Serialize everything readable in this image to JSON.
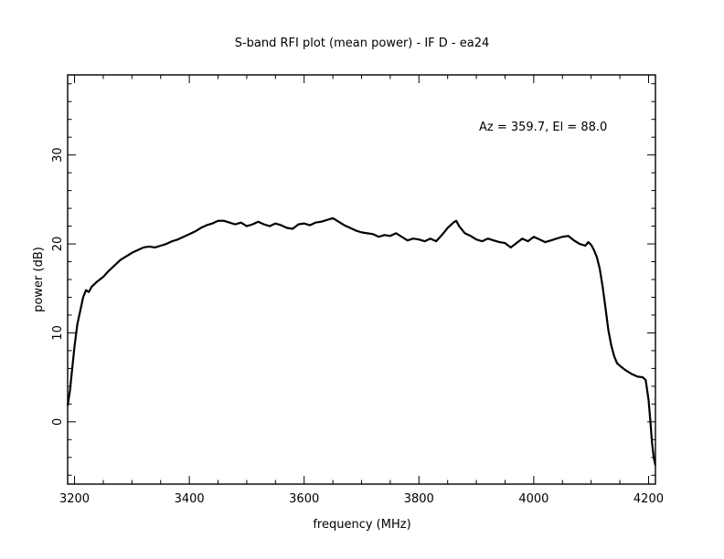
{
  "chart_data": {
    "type": "line",
    "title": "S-band RFI plot (mean power) - IF D - ea24",
    "xlabel": "frequency (MHz)",
    "ylabel": "power (dB)",
    "annotation": "Az = 359.7, El = 88.0",
    "xlim": [
      3188,
      4212
    ],
    "ylim": [
      -7,
      39
    ],
    "x_ticks": [
      3200,
      3400,
      3600,
      3800,
      4000,
      4200
    ],
    "y_ticks": [
      0,
      10,
      20,
      30
    ],
    "grid": false,
    "line_color": "#000000",
    "series": [
      {
        "x": [
          3188,
          3192,
          3196,
          3200,
          3205,
          3210,
          3215,
          3220,
          3225,
          3230,
          3240,
          3250,
          3260,
          3270,
          3280,
          3290,
          3300,
          3310,
          3320,
          3330,
          3340,
          3350,
          3360,
          3370,
          3380,
          3390,
          3400,
          3410,
          3420,
          3430,
          3440,
          3450,
          3460,
          3470,
          3480,
          3490,
          3500,
          3510,
          3520,
          3530,
          3540,
          3550,
          3560,
          3570,
          3580,
          3590,
          3600,
          3610,
          3620,
          3630,
          3640,
          3650,
          3660,
          3670,
          3680,
          3690,
          3700,
          3710,
          3720,
          3730,
          3740,
          3750,
          3760,
          3770,
          3780,
          3790,
          3800,
          3810,
          3820,
          3830,
          3840,
          3850,
          3860,
          3865,
          3870,
          3880,
          3890,
          3900,
          3910,
          3920,
          3930,
          3940,
          3950,
          3960,
          3970,
          3980,
          3990,
          4000,
          4010,
          4020,
          4030,
          4040,
          4050,
          4060,
          4070,
          4080,
          4090,
          4095,
          4100,
          4105,
          4110,
          4115,
          4120,
          4125,
          4130,
          4135,
          4140,
          4145,
          4150,
          4160,
          4170,
          4180,
          4190,
          4195,
          4200,
          4203,
          4206,
          4209,
          4212
        ],
        "y": [
          1.8,
          3.5,
          6,
          8.5,
          11,
          12.5,
          14,
          14.8,
          14.6,
          15.2,
          15.8,
          16.3,
          17,
          17.6,
          18.2,
          18.6,
          19,
          19.3,
          19.6,
          19.7,
          19.6,
          19.8,
          20,
          20.3,
          20.5,
          20.8,
          21.1,
          21.4,
          21.8,
          22.1,
          22.3,
          22.6,
          22.6,
          22.4,
          22.2,
          22.4,
          22,
          22.2,
          22.5,
          22.2,
          22,
          22.3,
          22.1,
          21.8,
          21.7,
          22.2,
          22.3,
          22.1,
          22.4,
          22.5,
          22.7,
          22.9,
          22.5,
          22.1,
          21.8,
          21.5,
          21.3,
          21.2,
          21.1,
          20.8,
          21,
          20.9,
          21.2,
          20.8,
          20.4,
          20.6,
          20.5,
          20.3,
          20.6,
          20.3,
          21,
          21.8,
          22.4,
          22.6,
          22,
          21.2,
          20.9,
          20.5,
          20.3,
          20.6,
          20.4,
          20.2,
          20.1,
          19.6,
          20.1,
          20.6,
          20.3,
          20.8,
          20.5,
          20.2,
          20.4,
          20.6,
          20.8,
          20.9,
          20.4,
          20,
          19.8,
          20.2,
          19.9,
          19.3,
          18.5,
          17.2,
          15.2,
          12.8,
          10.3,
          8.6,
          7.4,
          6.6,
          6.3,
          5.8,
          5.4,
          5.1,
          5,
          4.7,
          2.5,
          0.2,
          -2.3,
          -4,
          -4.9
        ]
      }
    ]
  }
}
